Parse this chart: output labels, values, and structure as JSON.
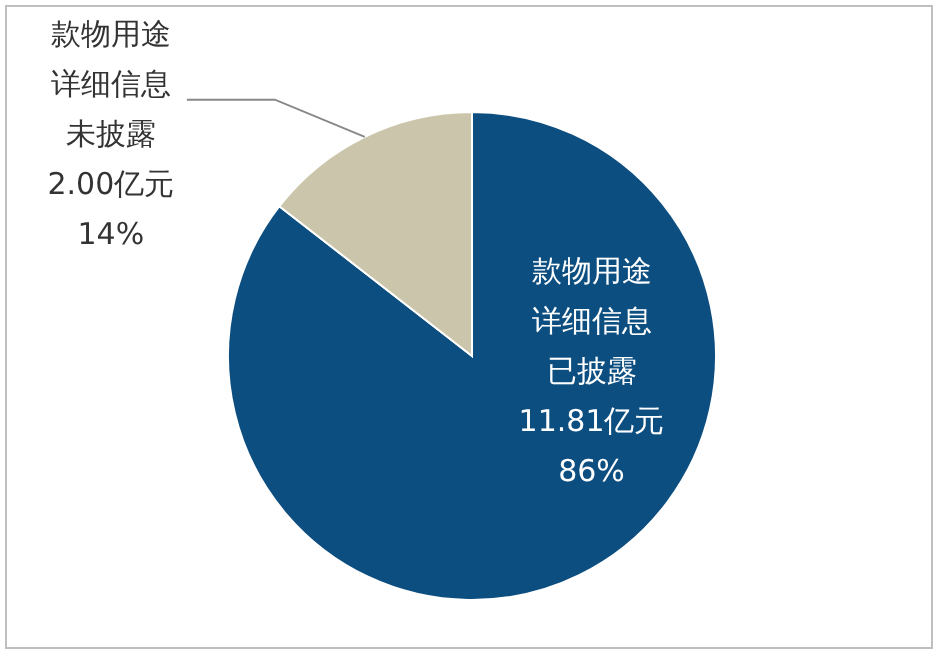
{
  "chart_data": {
    "type": "pie",
    "categories": [
      "款物用途详细信息已披露",
      "款物用途详细信息未披露"
    ],
    "values": [
      11.81,
      2.0
    ],
    "colors": [
      "#0d4e80",
      "#cbc6ab"
    ],
    "value_labels": [
      "11.81亿元\n86%",
      "2.00亿元\n14%"
    ]
  }
}
